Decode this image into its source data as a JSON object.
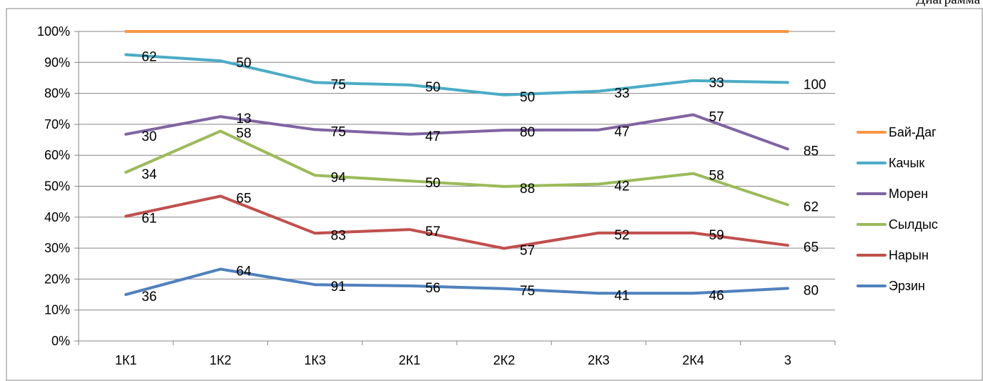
{
  "caption": "Диаграмма",
  "chart_data": {
    "type": "line",
    "title": "",
    "xlabel": "",
    "ylabel": "",
    "categories": [
      "1К1",
      "1К2",
      "1К3",
      "2К1",
      "2К2",
      "2К3",
      "2К4",
      "3"
    ],
    "y_ticks": [
      "0%",
      "10%",
      "20%",
      "30%",
      "40%",
      "50%",
      "60%",
      "70%",
      "80%",
      "90%",
      "100%"
    ],
    "ylim": [
      0,
      100
    ],
    "grid": true,
    "legend_position": "right",
    "series": [
      {
        "name": "Бай-Даг",
        "color": "#F79646",
        "values": [
          100,
          100,
          100,
          100,
          100,
          100,
          100,
          100
        ],
        "labels": []
      },
      {
        "name": "Качык",
        "color": "#4BACC6",
        "values": [
          92.5,
          90.5,
          83.5,
          82.7,
          79.5,
          80.7,
          84.1,
          83.5
        ],
        "labels": [
          "62",
          "50",
          "75",
          "50",
          "50",
          "33",
          "33",
          "100"
        ]
      },
      {
        "name": "Морен",
        "color": "#8064A2",
        "values": [
          66.8,
          72.5,
          68.3,
          66.8,
          68.1,
          68.2,
          73.1,
          62.0
        ],
        "labels": [
          "30",
          "13",
          "75",
          "47",
          "80",
          "47",
          "57",
          "85"
        ]
      },
      {
        "name": "Сылдыс",
        "color": "#9BBB59",
        "values": [
          54.5,
          67.8,
          53.5,
          51.7,
          49.9,
          50.7,
          54.1,
          44.0
        ],
        "labels": [
          "34",
          "58",
          "94",
          "50",
          "88",
          "42",
          "58",
          "62"
        ]
      },
      {
        "name": "Нарын",
        "color": "#C0504D",
        "values": [
          40.3,
          46.8,
          34.8,
          36.0,
          29.9,
          34.9,
          34.9,
          30.9
        ],
        "labels": [
          "61",
          "65",
          "83",
          "57",
          "57",
          "52",
          "59",
          "65"
        ]
      },
      {
        "name": "Эрзин",
        "color": "#4F81BD",
        "values": [
          15.0,
          23.2,
          18.2,
          17.8,
          16.9,
          15.4,
          15.4,
          17.0
        ],
        "labels": [
          "36",
          "64",
          "91",
          "56",
          "75",
          "41",
          "46",
          "80"
        ]
      }
    ]
  }
}
